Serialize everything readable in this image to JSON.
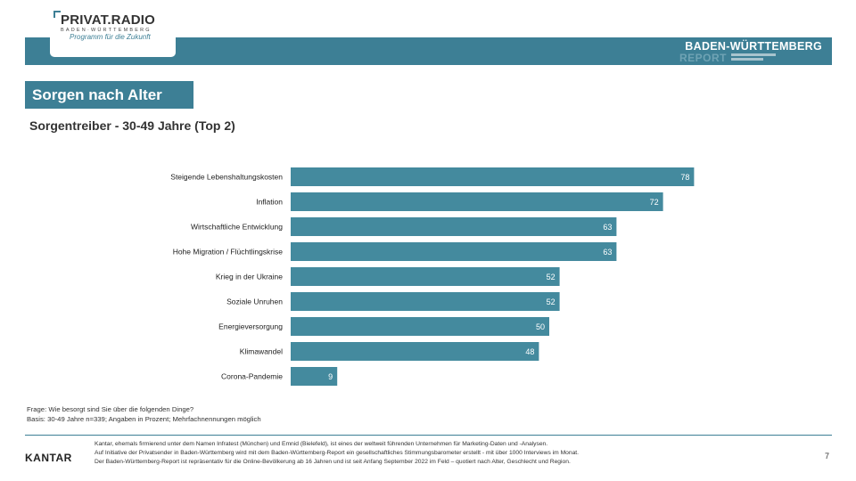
{
  "logo": {
    "main": "PRIVAT.RADIO",
    "sub": "BADEN·WÜRTTEMBERG",
    "tagline": "Programm für die Zukunft"
  },
  "report": {
    "title": "BADEN-WÜRTTEMBERG",
    "subtitle": "REPORT"
  },
  "section_title": "Sorgen nach Alter",
  "colors": {
    "bar": "#448a9e",
    "accent": "#3d7f95"
  },
  "chart_data": {
    "type": "bar",
    "orientation": "horizontal",
    "title": "Sorgentreiber - 30-49 Jahre (Top 2)",
    "categories": [
      "Steigende Lebenshaltungskosten",
      "Inflation",
      "Wirtschaftliche Entwicklung",
      "Hohe Migration / Flüchtlingskrise",
      "Krieg in der Ukraine",
      "Soziale Unruhen",
      "Energieversorgung",
      "Klimawandel",
      "Corona-Pandemie"
    ],
    "values": [
      78,
      72,
      63,
      63,
      52,
      52,
      50,
      48,
      9
    ],
    "xlim": [
      0,
      100
    ],
    "grid": false,
    "data_labels": true
  },
  "notes": {
    "question": "Frage: Wie besorgt sind Sie über die folgenden Dinge?",
    "basis": "Basis: 30-49 Jahre n=339; Angaben in Prozent; Mehrfachnennungen möglich"
  },
  "footer": {
    "brand": "KANTAR",
    "line1": "Kantar, ehemals firmierend unter dem Namen Infratest (München) und Emnid (Bielefeld), ist eines der weltweit führenden Unternehmen für Marketing-Daten und -Analysen.",
    "line2": "Auf Initiative der Privatsender in Baden-Württemberg wird mit dem Baden-Württemberg-Report ein gesellschaftliches Stimmungsbarometer erstellt - mit über 1000 Interviews im Monat.",
    "line3": "Der Baden-Württemberg-Report ist repräsentativ für die Online-Bevölkerung ab 16 Jahren und ist seit Anfang September 2022 im Feld – quotiert nach Alter, Geschlecht und Region.",
    "page": "7"
  }
}
